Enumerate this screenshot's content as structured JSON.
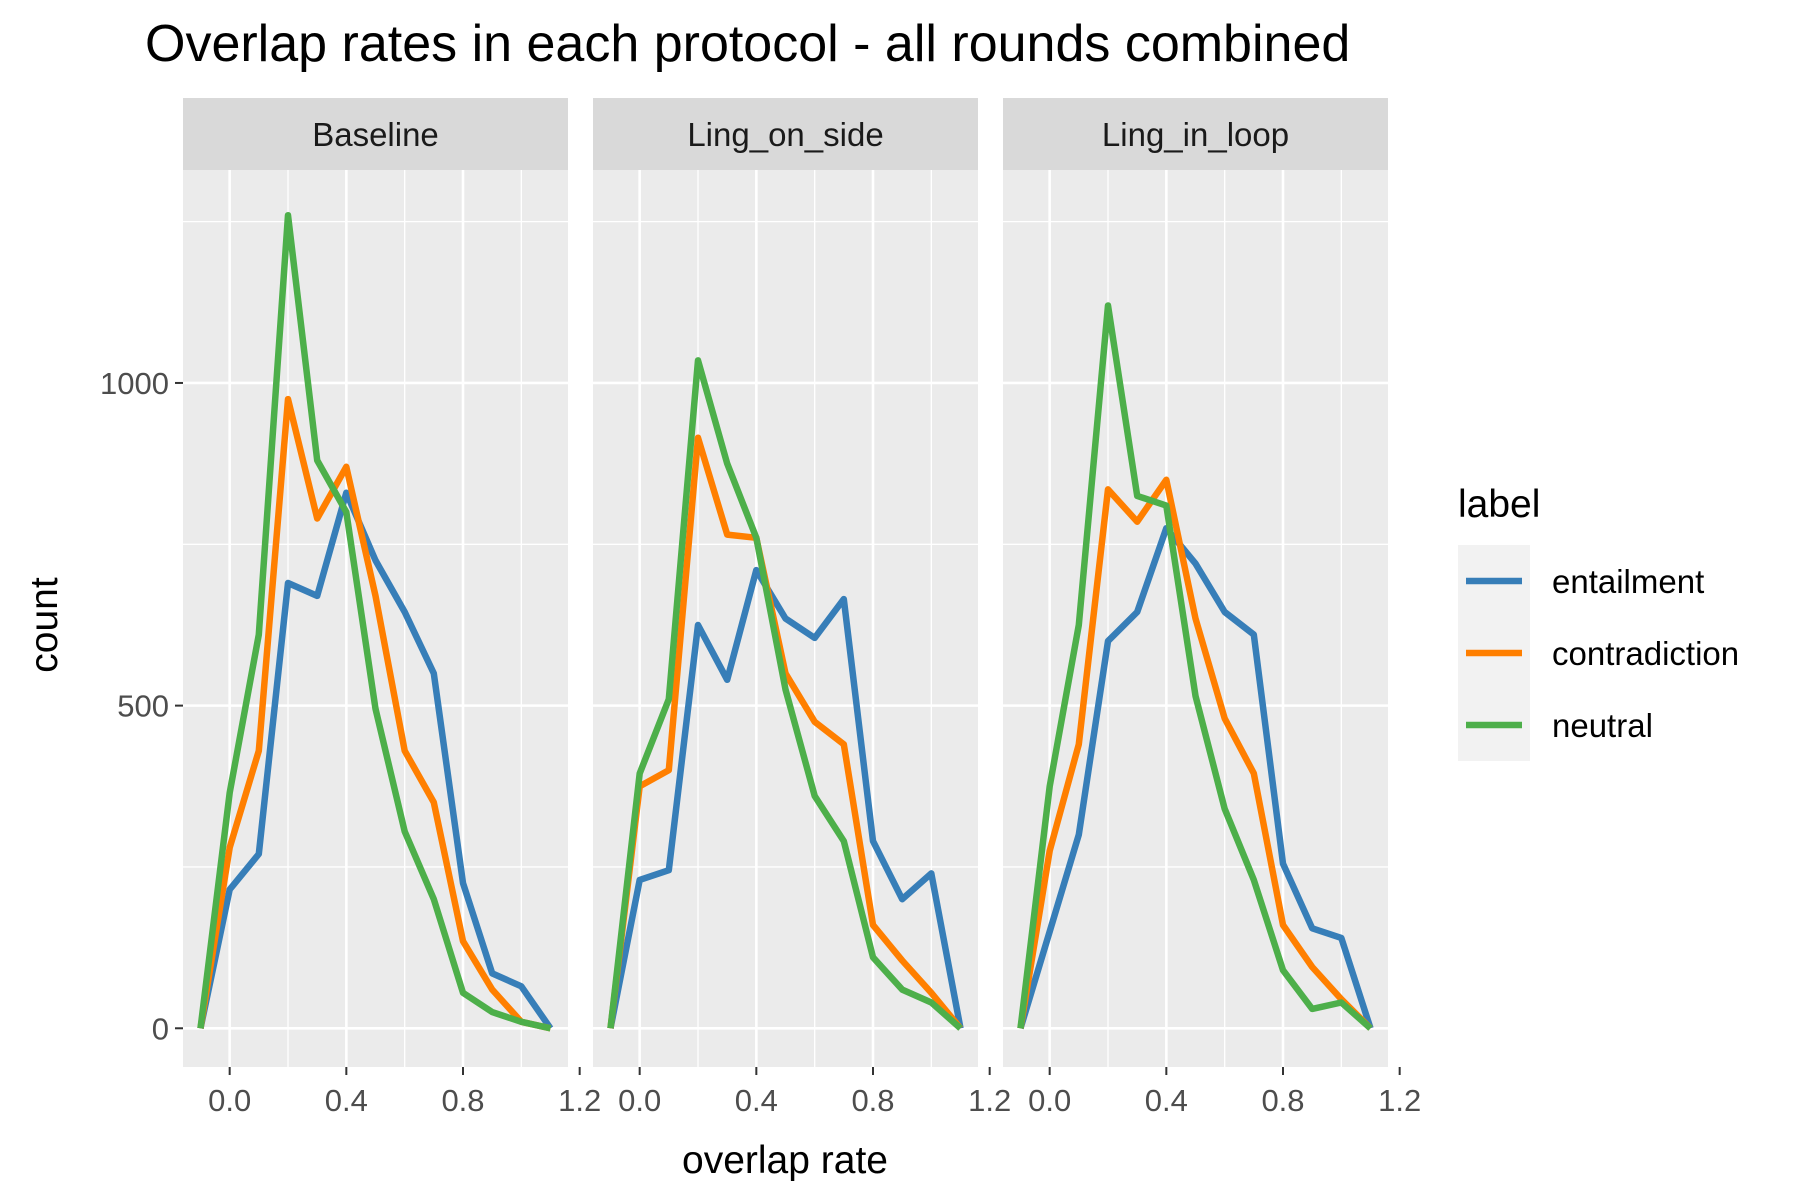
{
  "chart_data": {
    "type": "line",
    "title": "Overlap rates in each protocol - all rounds combined",
    "xlabel": "overlap rate",
    "ylabel": "count",
    "xlim": [
      -0.16,
      1.16
    ],
    "ylim": [
      -60,
      1330
    ],
    "x_ticks": [
      0.0,
      0.4,
      0.8,
      1.2
    ],
    "x_tick_labels": [
      "0.0",
      "0.4",
      "0.8",
      "1.2"
    ],
    "y_ticks": [
      0,
      500,
      1000
    ],
    "y_tick_labels": [
      "0",
      "500",
      "1000"
    ],
    "grid": true,
    "legend": {
      "title": "label",
      "position": "right"
    },
    "colors": {
      "entailment": "#377eb8",
      "contradiction": "#ff7f00",
      "neutral": "#4daf4a"
    },
    "x": [
      -0.1,
      0.0,
      0.1,
      0.2,
      0.3,
      0.4,
      0.5,
      0.6,
      0.7,
      0.8,
      0.9,
      1.0,
      1.1
    ],
    "panels": [
      {
        "name": "Baseline",
        "series": [
          {
            "name": "entailment",
            "values": [
              0,
              215,
              270,
              690,
              670,
              830,
              725,
              645,
              550,
              225,
              85,
              65,
              0
            ]
          },
          {
            "name": "contradiction",
            "values": [
              0,
              280,
              430,
              975,
              790,
              870,
              670,
              430,
              350,
              135,
              60,
              10,
              0
            ]
          },
          {
            "name": "neutral",
            "values": [
              0,
              365,
              610,
              1260,
              880,
              800,
              495,
              305,
              200,
              55,
              25,
              10,
              0
            ]
          }
        ]
      },
      {
        "name": "Ling_on_side",
        "series": [
          {
            "name": "entailment",
            "values": [
              0,
              230,
              245,
              625,
              540,
              710,
              635,
              605,
              665,
              290,
              200,
              240,
              0
            ]
          },
          {
            "name": "contradiction",
            "values": [
              0,
              375,
              400,
              915,
              765,
              760,
              550,
              475,
              440,
              160,
              105,
              55,
              0
            ]
          },
          {
            "name": "neutral",
            "values": [
              0,
              395,
              510,
              1035,
              875,
              760,
              525,
              360,
              290,
              110,
              60,
              40,
              0
            ]
          }
        ]
      },
      {
        "name": "Ling_in_loop",
        "series": [
          {
            "name": "entailment",
            "values": [
              0,
              150,
              300,
              600,
              645,
              775,
              720,
              645,
              610,
              255,
              155,
              140,
              0
            ]
          },
          {
            "name": "contradiction",
            "values": [
              0,
              275,
              440,
              835,
              785,
              850,
              635,
              480,
              395,
              160,
              95,
              45,
              0
            ]
          },
          {
            "name": "neutral",
            "values": [
              0,
              375,
              625,
              1120,
              825,
              810,
              515,
              340,
              230,
              90,
              30,
              40,
              0
            ]
          }
        ]
      }
    ]
  }
}
